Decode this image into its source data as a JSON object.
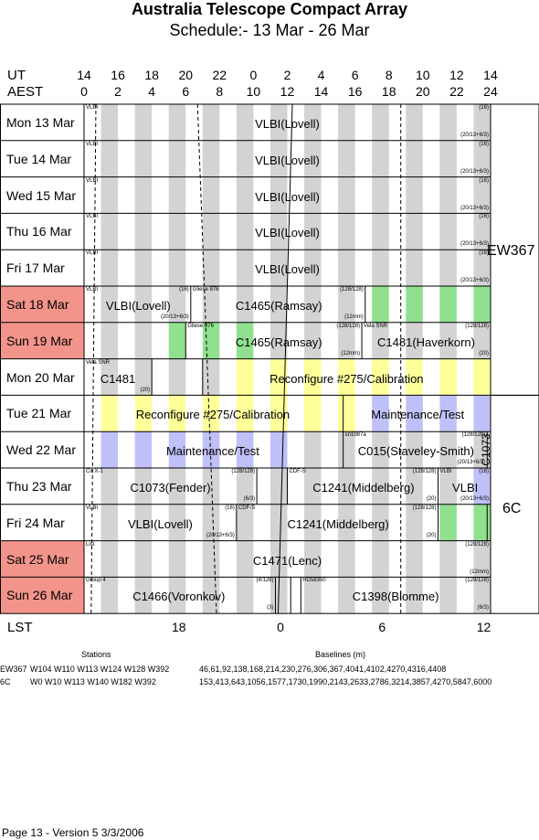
{
  "title": "Australia Telescope Compact Array",
  "subtitle": "Schedule:- 13 Mar - 26 Mar",
  "axis": {
    "ut_label": "UT",
    "aest_label": "AEST",
    "lst_label": "LST",
    "ut_ticks": [
      "14",
      "16",
      "18",
      "20",
      "22",
      "0",
      "2",
      "4",
      "6",
      "8",
      "10",
      "12",
      "14"
    ],
    "aest_ticks": [
      "0",
      "2",
      "4",
      "6",
      "8",
      "10",
      "12",
      "14",
      "16",
      "18",
      "20",
      "22",
      "24"
    ],
    "lst_ticks": [
      "18",
      "0",
      "6",
      "12"
    ]
  },
  "days": [
    {
      "label": "Mon  13 Mar",
      "weekend": false
    },
    {
      "label": "Tue  14 Mar",
      "weekend": false
    },
    {
      "label": "Wed  15 Mar",
      "weekend": false
    },
    {
      "label": "Thu  16 Mar",
      "weekend": false
    },
    {
      "label": "Fri   17 Mar",
      "weekend": false
    },
    {
      "label": "Sat  18 Mar",
      "weekend": true
    },
    {
      "label": "Sun  19 Mar",
      "weekend": true
    },
    {
      "label": "Mon  20 Mar",
      "weekend": false
    },
    {
      "label": "Tue  21 Mar",
      "weekend": false
    },
    {
      "label": "Wed  22 Mar",
      "weekend": false
    },
    {
      "label": "Thu  23 Mar",
      "weekend": false
    },
    {
      "label": "Fri   24 Mar",
      "weekend": false
    },
    {
      "label": "Sat  25 Mar",
      "weekend": true
    },
    {
      "label": "Sun  26 Mar",
      "weekend": true
    }
  ],
  "configs": [
    {
      "name": "EW367"
    },
    {
      "name": "C1073"
    },
    {
      "name": "6C"
    }
  ],
  "rows": [
    {
      "blocks": [
        {
          "code": "VLBI",
          "name": "VLBI(Lovell)",
          "band": "(16)",
          "corr": "(20/13+6/3)"
        }
      ]
    },
    {
      "blocks": [
        {
          "code": "VLBI",
          "name": "VLBI(Lovell)",
          "band": "(16)",
          "corr": "(20/13+6/3)"
        }
      ]
    },
    {
      "blocks": [
        {
          "code": "VLBI",
          "name": "VLBI(Lovell)",
          "band": "(16)",
          "corr": "(20/13+6/3)"
        }
      ]
    },
    {
      "blocks": [
        {
          "code": "VLBI",
          "name": "VLBI(Lovell)",
          "band": "(16)",
          "corr": "(20/13+6/3)"
        }
      ]
    },
    {
      "blocks": [
        {
          "code": "VLBI",
          "name": "VLBI(Lovell)",
          "band": "(16)",
          "corr": "(20/13+6/3)"
        }
      ]
    },
    {
      "blocks": [
        {
          "code": "VLBI",
          "name": "VLBI(Lovell)",
          "band": "(16)",
          "corr": "(20/13+6/3)"
        },
        {
          "code": "Gliese 876",
          "name": "C1465(Ramsay)",
          "band": "(128/128)",
          "corr": "(12mm)"
        }
      ]
    },
    {
      "blocks": [
        {
          "code": "Gliese 876",
          "name": "C1465(Ramsay)",
          "band": "(128/128)",
          "corr": "(12mm)"
        },
        {
          "code": "Vela SNR",
          "name": "C1481(Haverkorn)",
          "band": "(128/128)",
          "corr": "(20)"
        }
      ]
    },
    {
      "blocks": [
        {
          "code": "Vela SNR",
          "name": "C1481",
          "band": "",
          "corr": "(20)"
        },
        {
          "code": "",
          "name": "Reconfigure #275/Calibration",
          "band": "",
          "corr": ""
        }
      ]
    },
    {
      "blocks": [
        {
          "code": "",
          "name": "Reconfigure #275/Calibration",
          "band": "",
          "corr": ""
        },
        {
          "code": "",
          "name": "Maintenance/Test",
          "band": "",
          "corr": ""
        }
      ]
    },
    {
      "blocks": [
        {
          "code": "",
          "name": "Maintenance/Test",
          "band": "",
          "corr": ""
        },
        {
          "code": "sn1987a",
          "name": "C015(Staveley-Smith)",
          "band": "(128/128)",
          "corr": "(20/13+6/3)"
        }
      ]
    },
    {
      "blocks": [
        {
          "code": "Cir X-1",
          "name": "C1073(Fender)",
          "band": "(128/128)",
          "corr": "(6/3)"
        },
        {
          "code": "CDF-S",
          "name": "C1241(Middelberg)",
          "band": "(128/128)",
          "corr": "(20)"
        },
        {
          "code": "VLBI",
          "name": "VLBI",
          "band": "(16)",
          "corr": "(20/13+6/3)"
        }
      ]
    },
    {
      "blocks": [
        {
          "code": "VLBI",
          "name": "VLBI(Lovell)",
          "band": "(16)",
          "corr": "(20/13+6/3)"
        },
        {
          "code": "CDF-S",
          "name": "C1241(Middelberg)",
          "band": "(128/128)",
          "corr": "(20)"
        }
      ]
    },
    {
      "blocks": [
        {
          "code": "List",
          "name": "C1471(Lenc)",
          "band": "(128/128)",
          "corr": "(12mm)"
        }
      ]
    },
    {
      "blocks": [
        {
          "code": "Group 4",
          "name": "C1466(Voronkov)",
          "band": "(4/128)",
          "corr": "(3)"
        },
        {
          "code": "HD58350",
          "name": "C1398(Blomme)",
          "band": "(128/128)",
          "corr": "(6/3)"
        }
      ]
    }
  ],
  "legend": {
    "stations_header": "Stations",
    "baselines_header": "Baselines (m)",
    "entries": [
      {
        "config": "EW367",
        "stations": "W104 W110 W113 W124 W128 W392",
        "baselines": "46,61,92,138,168,214,230,276,306,367,4041,4102,4270,4316,4408"
      },
      {
        "config": "6C",
        "stations": "W0 W10 W113 W140 W182 W392",
        "baselines": "153,413,643,1056,1577,1730,1990,2143,2633,2786,3214,3857,4270,5847,6000"
      }
    ]
  },
  "footer": "Page 13 - Version 5  3/3/2006",
  "colors": {
    "weekend": "#f2948a",
    "stripe_gray": "#d3d3d3",
    "stripe_green": "#90e090",
    "stripe_yellow": "#ffff99",
    "stripe_lavender": "#c0c0f8"
  }
}
